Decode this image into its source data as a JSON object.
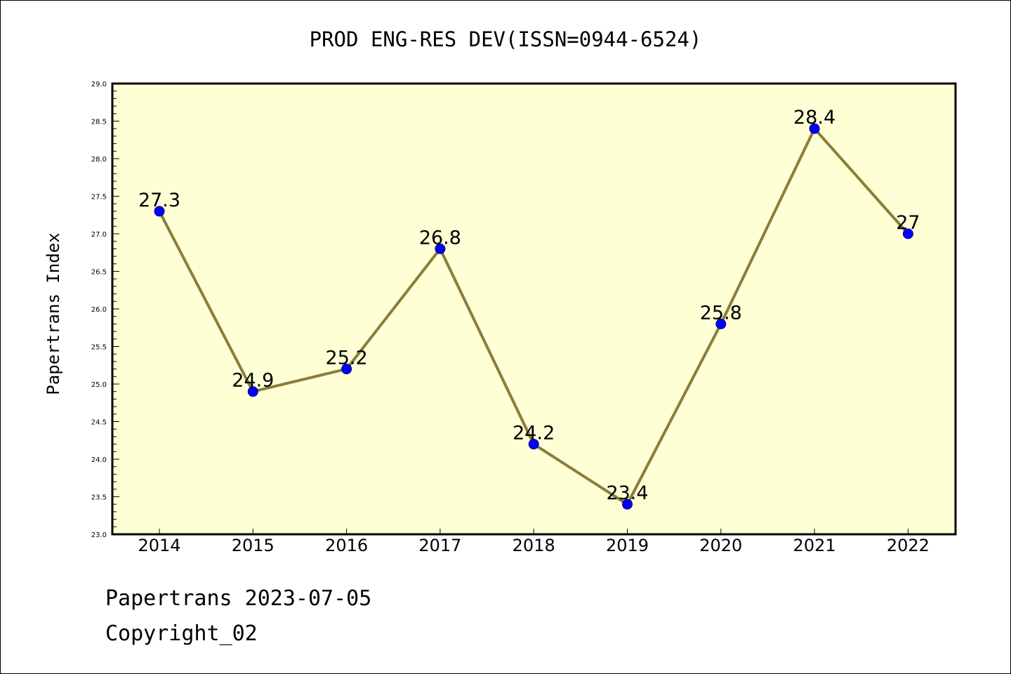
{
  "chart_data": {
    "type": "line",
    "title": "PROD ENG-RES DEV(ISSN=0944-6524)",
    "xlabel": "",
    "ylabel": "Papertrans Index",
    "x": [
      "2014",
      "2015",
      "2016",
      "2017",
      "2018",
      "2019",
      "2020",
      "2021",
      "2022"
    ],
    "values": [
      27.3,
      24.9,
      25.2,
      26.8,
      24.2,
      23.4,
      25.8,
      28.4,
      27
    ],
    "data_labels": [
      "27.3",
      "24.9",
      "25.2",
      "26.8",
      "24.2",
      "23.4",
      "25.8",
      "28.4",
      "27"
    ],
    "ylim": [
      23.0,
      29.0
    ],
    "yticks": [
      "23.0",
      "23.5",
      "24.0",
      "24.5",
      "25.0",
      "25.5",
      "26.0",
      "26.5",
      "27.0",
      "27.5",
      "28.0",
      "28.5",
      "29.0"
    ],
    "grid": false,
    "colors": {
      "plot_background": "#ffffd5",
      "line": "#8b7d3a",
      "marker": "#0000ff"
    }
  },
  "footer": {
    "line1": "Papertrans 2023-07-05",
    "line2": "Copyright_02"
  }
}
